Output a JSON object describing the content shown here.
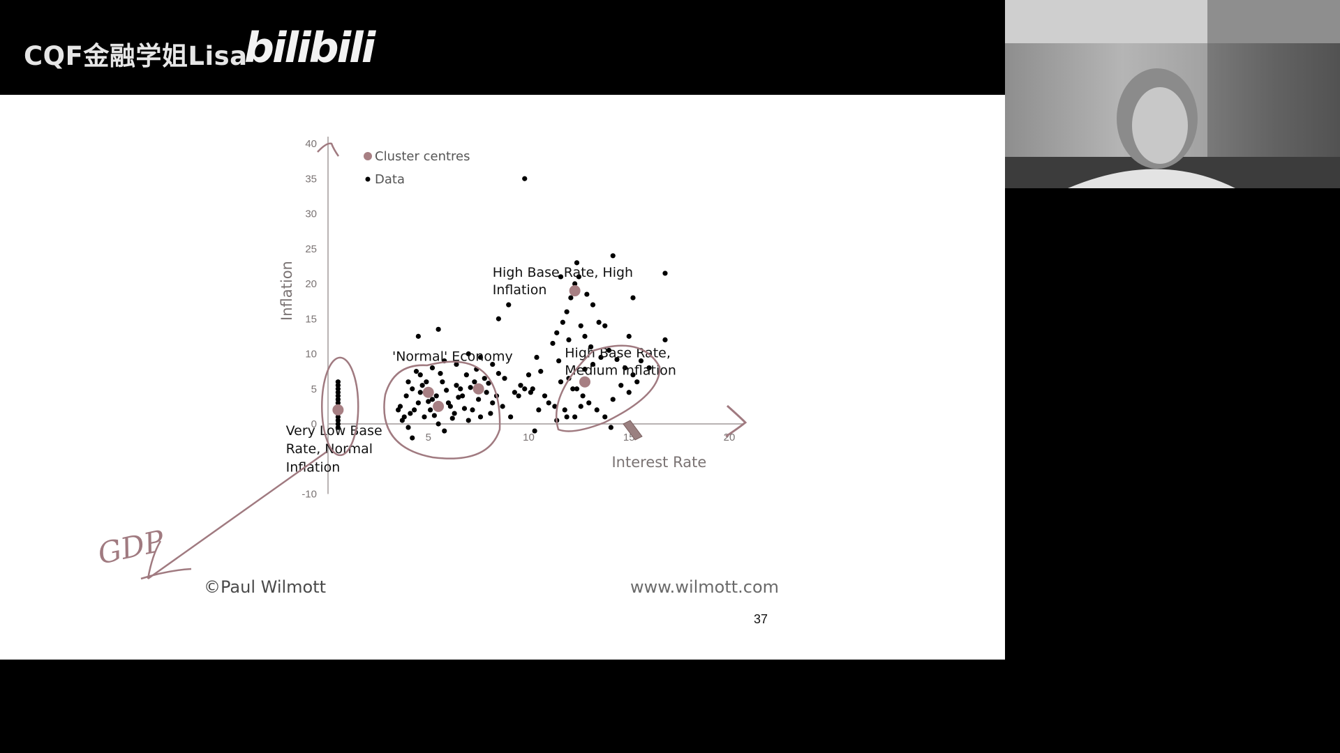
{
  "header": {
    "channel_title": "CQF金融学姐Lisa",
    "logo_text": "bilibili"
  },
  "chart_data": {
    "type": "scatter",
    "title": "",
    "xlabel": "Interest Rate",
    "ylabel": "Inflation",
    "xlim": [
      0,
      20
    ],
    "ylim": [
      -10,
      40
    ],
    "x_ticks": [
      5,
      10,
      15,
      20
    ],
    "y_ticks": [
      -10,
      0,
      5,
      10,
      15,
      20,
      25,
      30,
      35,
      40
    ],
    "grid": false,
    "legend": {
      "position": "top-left",
      "entries": [
        "Cluster centres",
        "Data"
      ]
    },
    "colors": {
      "centres": "#a77f83",
      "data": "#000000",
      "axis": "#b9b3b3",
      "ink": "#a07a80"
    },
    "series": [
      {
        "name": "Cluster centres",
        "points": [
          [
            0.5,
            2
          ],
          [
            5,
            4.5
          ],
          [
            7.5,
            5
          ],
          [
            12.3,
            19
          ],
          [
            12.8,
            6
          ],
          [
            5.5,
            2.5
          ]
        ]
      },
      {
        "name": "Data",
        "points": [
          [
            0.5,
            -0.5
          ],
          [
            0.5,
            0
          ],
          [
            0.5,
            0.5
          ],
          [
            0.5,
            1
          ],
          [
            0.5,
            1.5
          ],
          [
            0.5,
            2
          ],
          [
            0.5,
            2.5
          ],
          [
            0.5,
            3
          ],
          [
            0.5,
            3.5
          ],
          [
            0.5,
            4
          ],
          [
            0.5,
            4.5
          ],
          [
            0.5,
            5
          ],
          [
            0.5,
            5.5
          ],
          [
            0.5,
            6
          ],
          [
            4.5,
            12.5
          ],
          [
            5.5,
            13.5
          ],
          [
            7,
            10
          ],
          [
            4,
            6
          ],
          [
            4.6,
            7
          ],
          [
            5.2,
            8
          ],
          [
            5.8,
            9
          ],
          [
            6.4,
            8.5
          ],
          [
            7.6,
            9.5
          ],
          [
            8.2,
            8.5
          ],
          [
            3.6,
            2.5
          ],
          [
            3.9,
            4
          ],
          [
            4.2,
            5
          ],
          [
            4.5,
            3
          ],
          [
            4.8,
            1
          ],
          [
            5.1,
            2
          ],
          [
            5.4,
            4
          ],
          [
            5.7,
            6
          ],
          [
            6,
            3
          ],
          [
            6.3,
            1.5
          ],
          [
            6.6,
            5
          ],
          [
            6.9,
            7
          ],
          [
            7.2,
            2
          ],
          [
            7.5,
            3.5
          ],
          [
            7.8,
            6.5
          ],
          [
            8.1,
            1.5
          ],
          [
            8.4,
            4
          ],
          [
            8.7,
            2.5
          ],
          [
            3.7,
            0.5
          ],
          [
            4,
            -0.5
          ],
          [
            4.3,
            2
          ],
          [
            4.6,
            4.5
          ],
          [
            4.9,
            6
          ],
          [
            5.2,
            3.5
          ],
          [
            5.5,
            0
          ],
          [
            5.8,
            -1
          ],
          [
            6.1,
            2.5
          ],
          [
            6.4,
            5.5
          ],
          [
            6.7,
            4
          ],
          [
            7,
            0.5
          ],
          [
            7.3,
            6
          ],
          [
            7.6,
            1
          ],
          [
            7.9,
            4.5
          ],
          [
            8.2,
            3
          ],
          [
            4.1,
            1.5
          ],
          [
            4.4,
            7.5
          ],
          [
            4.7,
            5.5
          ],
          [
            5,
            3.2
          ],
          [
            5.3,
            1.2
          ],
          [
            5.6,
            7.2
          ],
          [
            5.9,
            4.8
          ],
          [
            6.2,
            0.8
          ],
          [
            6.5,
            3.8
          ],
          [
            6.8,
            2.2
          ],
          [
            7.1,
            5.2
          ],
          [
            7.4,
            7.8
          ],
          [
            8,
            5.8
          ],
          [
            8.5,
            7.2
          ],
          [
            8.8,
            6.5
          ],
          [
            4.2,
            -2
          ],
          [
            3.8,
            1
          ],
          [
            3.5,
            2
          ],
          [
            9.3,
            4.5
          ],
          [
            9.8,
            5
          ],
          [
            9.5,
            4
          ],
          [
            9.1,
            1
          ],
          [
            9.6,
            5.5
          ],
          [
            10,
            7
          ],
          [
            10.2,
            5
          ],
          [
            10.5,
            2
          ],
          [
            10.8,
            4
          ],
          [
            11,
            3
          ],
          [
            11.3,
            2.5
          ],
          [
            11.6,
            6
          ],
          [
            11.9,
            1
          ],
          [
            12.2,
            5
          ],
          [
            10.4,
            9.5
          ],
          [
            10.1,
            4.5
          ],
          [
            10.6,
            7.5
          ],
          [
            10.3,
            -1
          ],
          [
            11.2,
            11.5
          ],
          [
            11.4,
            13
          ],
          [
            11.7,
            14.5
          ],
          [
            11.9,
            16
          ],
          [
            12.1,
            18
          ],
          [
            12.3,
            20
          ],
          [
            12.5,
            21
          ],
          [
            12.4,
            23
          ],
          [
            11.6,
            21
          ],
          [
            12.9,
            18.5
          ],
          [
            13.2,
            17
          ],
          [
            13.5,
            14.5
          ],
          [
            13.8,
            14
          ],
          [
            12.6,
            14
          ],
          [
            12.8,
            12.5
          ],
          [
            13.1,
            11
          ],
          [
            11.5,
            9
          ],
          [
            12,
            12
          ],
          [
            8.5,
            15
          ],
          [
            9,
            17
          ],
          [
            9.8,
            35
          ],
          [
            16.8,
            21.5
          ],
          [
            14.2,
            24
          ],
          [
            15.2,
            18
          ],
          [
            16.8,
            12
          ],
          [
            15,
            12.5
          ],
          [
            12,
            6.5
          ],
          [
            12.4,
            5
          ],
          [
            12.8,
            7.8
          ],
          [
            13.2,
            8.5
          ],
          [
            13.6,
            9.5
          ],
          [
            14,
            10.5
          ],
          [
            14.4,
            9.2
          ],
          [
            14.8,
            8
          ],
          [
            15.2,
            7
          ],
          [
            15.6,
            9
          ],
          [
            16,
            8
          ],
          [
            12.7,
            4
          ],
          [
            13,
            3
          ],
          [
            13.4,
            2
          ],
          [
            13.8,
            1
          ],
          [
            14.2,
            3.5
          ],
          [
            14.6,
            5.5
          ],
          [
            15,
            4.5
          ],
          [
            15.4,
            6
          ],
          [
            12.3,
            1
          ],
          [
            12.6,
            2.5
          ],
          [
            14.1,
            -0.5
          ],
          [
            11.4,
            0.5
          ],
          [
            11.8,
            2
          ]
        ]
      }
    ],
    "annotations": [
      {
        "text": "High Base Rate, High",
        "at": [
          8.2,
          21
        ]
      },
      {
        "text": "Inflation",
        "at": [
          8.2,
          18.5
        ]
      },
      {
        "text": "'Normal' Economy",
        "at": [
          3.2,
          9
        ]
      },
      {
        "text": "High Base Rate,",
        "at": [
          11.8,
          9.5
        ]
      },
      {
        "text": "Medium Inflation",
        "at": [
          11.8,
          7
        ]
      },
      {
        "text": "Very Low Base",
        "at": [
          -2.1,
          -1.6
        ]
      },
      {
        "text": "Rate, Normal",
        "at": [
          -2.1,
          -4.2
        ]
      },
      {
        "text": "Inflation",
        "at": [
          -2.1,
          -6.8
        ]
      }
    ],
    "handwriting": {
      "axis_label": "GDP"
    }
  },
  "footer": {
    "credit_left": "©Paul Wilmott",
    "credit_right": "www.wilmott.com",
    "page_number": "37"
  }
}
